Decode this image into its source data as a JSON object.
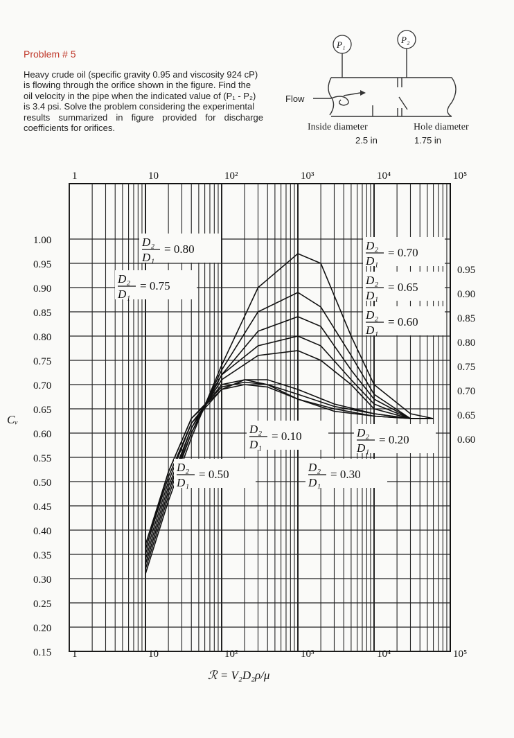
{
  "problem": {
    "title": "Problem # 5",
    "lines": [
      "Heavy crude oil (specific gravity 0.95 and viscosity 924 cP)",
      "is flowing through the orifice shown in the figure. Find the",
      "oil velocity in the pipe when the indicated value of (P₁ - P₂)",
      "is 3.4 psi. Solve the problem considering the experimental",
      "results  summarized  in  figure  provided  for  discharge",
      "coefficients for orifices."
    ]
  },
  "diagram": {
    "p1_label": "P₁",
    "p2_label": "P₂",
    "flow_label": "Flow",
    "inside_diameter_label": "Inside diameter",
    "inside_diameter_value": "2.5 in",
    "hole_diameter_label": "Hole diameter",
    "hole_diameter_value": "1.75 in"
  },
  "chart_data": {
    "type": "line",
    "x_scale": "log",
    "xlim": [
      1,
      100000
    ],
    "ylim": [
      0.15,
      1.0
    ],
    "ylabel": "Cᵥ",
    "xlabel": "ℛ = V₂D₂ρ/μ",
    "x_ticks": [
      {
        "value": 1,
        "label": "1"
      },
      {
        "value": 10,
        "label": "10"
      },
      {
        "value": 100,
        "label": "10²"
      },
      {
        "value": 1000,
        "label": "10³"
      },
      {
        "value": 10000,
        "label": "10⁴"
      },
      {
        "value": 100000,
        "label": "10⁵"
      }
    ],
    "y_ticks_left": [
      "1.00",
      "0.95",
      "0.90",
      "0.85",
      "0.80",
      "0.75",
      "0.70",
      "0.65",
      "0.60",
      "0.55",
      "0.50",
      "0.45",
      "0.40",
      "0.35",
      "0.30",
      "0.25",
      "0.20",
      "0.15"
    ],
    "y_ticks_right": [
      "0.95",
      "0.90",
      "0.85",
      "0.80",
      "0.75",
      "0.70",
      "0.65",
      "0.60"
    ],
    "series": [
      {
        "name": "0.80",
        "x": [
          10,
          20,
          40,
          100,
          300,
          1000,
          2000,
          5000,
          10000,
          30000,
          60000
        ],
        "y": [
          0.31,
          0.46,
          0.59,
          0.74,
          0.9,
          0.97,
          0.95,
          0.8,
          0.7,
          0.64,
          0.63
        ]
      },
      {
        "name": "0.75",
        "x": [
          10,
          20,
          40,
          100,
          300,
          1000,
          2000,
          5000,
          10000,
          30000,
          60000
        ],
        "y": [
          0.32,
          0.47,
          0.6,
          0.73,
          0.85,
          0.89,
          0.86,
          0.76,
          0.68,
          0.63,
          0.63
        ]
      },
      {
        "name": "0.70",
        "x": [
          10,
          20,
          40,
          100,
          300,
          1000,
          2000,
          5000,
          10000,
          30000,
          60000
        ],
        "y": [
          0.33,
          0.48,
          0.6,
          0.72,
          0.81,
          0.84,
          0.82,
          0.73,
          0.67,
          0.63,
          0.63
        ]
      },
      {
        "name": "0.65",
        "x": [
          10,
          20,
          40,
          100,
          300,
          1000,
          2000,
          5000,
          10000,
          30000,
          60000
        ],
        "y": [
          0.33,
          0.48,
          0.61,
          0.72,
          0.78,
          0.8,
          0.78,
          0.71,
          0.66,
          0.63,
          0.63
        ]
      },
      {
        "name": "0.60",
        "x": [
          10,
          20,
          40,
          100,
          300,
          1000,
          2000,
          5000,
          10000,
          30000,
          60000
        ],
        "y": [
          0.34,
          0.49,
          0.61,
          0.71,
          0.76,
          0.77,
          0.75,
          0.7,
          0.65,
          0.63,
          0.63
        ]
      },
      {
        "name": "0.50",
        "x": [
          10,
          20,
          40,
          100,
          200,
          400,
          1000,
          3000,
          10000,
          30000,
          60000
        ],
        "y": [
          0.35,
          0.5,
          0.62,
          0.7,
          0.71,
          0.71,
          0.69,
          0.66,
          0.64,
          0.63,
          0.63
        ]
      },
      {
        "name": "0.30",
        "x": [
          10,
          20,
          40,
          100,
          200,
          400,
          1000,
          3000,
          10000,
          30000,
          60000
        ],
        "y": [
          0.36,
          0.51,
          0.62,
          0.69,
          0.71,
          0.7,
          0.68,
          0.655,
          0.64,
          0.63,
          0.63
        ]
      },
      {
        "name": "0.20",
        "x": [
          10,
          20,
          40,
          100,
          200,
          400,
          1000,
          3000,
          10000,
          30000,
          60000
        ],
        "y": [
          0.36,
          0.52,
          0.63,
          0.695,
          0.705,
          0.7,
          0.67,
          0.65,
          0.635,
          0.63,
          0.63
        ]
      },
      {
        "name": "0.10",
        "x": [
          10,
          20,
          40,
          100,
          200,
          400,
          1000,
          3000,
          10000,
          30000,
          60000
        ],
        "y": [
          0.37,
          0.52,
          0.63,
          0.69,
          0.7,
          0.695,
          0.67,
          0.645,
          0.635,
          0.63,
          0.63
        ]
      }
    ],
    "annotations": [
      {
        "ratio": "0.80"
      },
      {
        "ratio": "0.75"
      },
      {
        "ratio": "0.70"
      },
      {
        "ratio": "0.65"
      },
      {
        "ratio": "0.60"
      },
      {
        "ratio": "0.50"
      },
      {
        "ratio": "0.10"
      },
      {
        "ratio": "0.30"
      },
      {
        "ratio": "0.20"
      }
    ],
    "grid": true
  }
}
